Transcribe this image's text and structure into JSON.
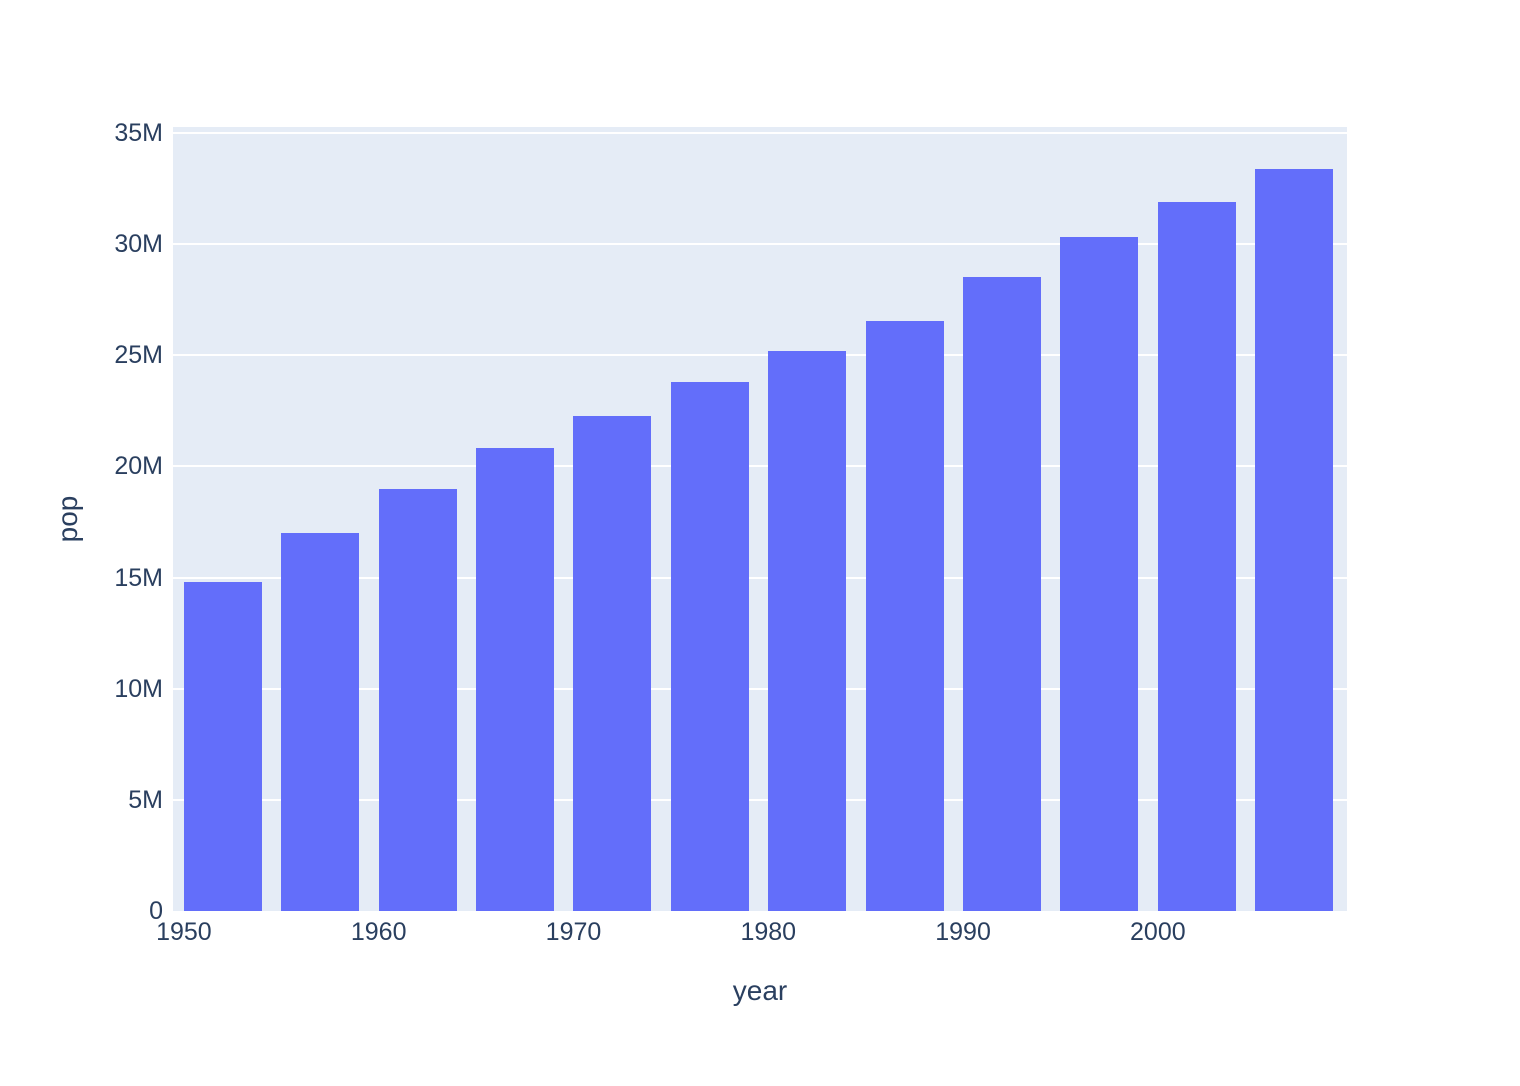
{
  "chart_data": {
    "type": "bar",
    "title": "",
    "xlabel": "year",
    "ylabel": "pop",
    "x": [
      1952,
      1957,
      1962,
      1967,
      1972,
      1977,
      1982,
      1987,
      1992,
      1997,
      2002,
      2007
    ],
    "values_millions": [
      14.79,
      17.01,
      18.99,
      20.82,
      22.28,
      23.8,
      25.2,
      26.55,
      28.52,
      30.31,
      31.9,
      33.39
    ],
    "value_unit": "persons (millions)",
    "bar_width_years": 4,
    "xlim": [
      1949.44,
      2009.71
    ],
    "ylim_millions": [
      0,
      35.27
    ],
    "x_ticks": [
      {
        "value": 1950,
        "label": "1950"
      },
      {
        "value": 1960,
        "label": "1960"
      },
      {
        "value": 1970,
        "label": "1970"
      },
      {
        "value": 1980,
        "label": "1980"
      },
      {
        "value": 1990,
        "label": "1990"
      },
      {
        "value": 2000,
        "label": "2000"
      }
    ],
    "y_ticks": [
      {
        "value": 0,
        "label": "0"
      },
      {
        "value": 5,
        "label": "5M"
      },
      {
        "value": 10,
        "label": "10M"
      },
      {
        "value": 15,
        "label": "15M"
      },
      {
        "value": 20,
        "label": "20M"
      },
      {
        "value": 25,
        "label": "25M"
      },
      {
        "value": 30,
        "label": "30M"
      },
      {
        "value": 35,
        "label": "35M"
      }
    ],
    "grid": true,
    "legend": false,
    "colors": {
      "bar": "#636EFA",
      "plot_background": "#E5ECF6",
      "paper_background": "#FFFFFF",
      "gridline": "#FFFFFF",
      "text": "#2A3F5F"
    }
  }
}
